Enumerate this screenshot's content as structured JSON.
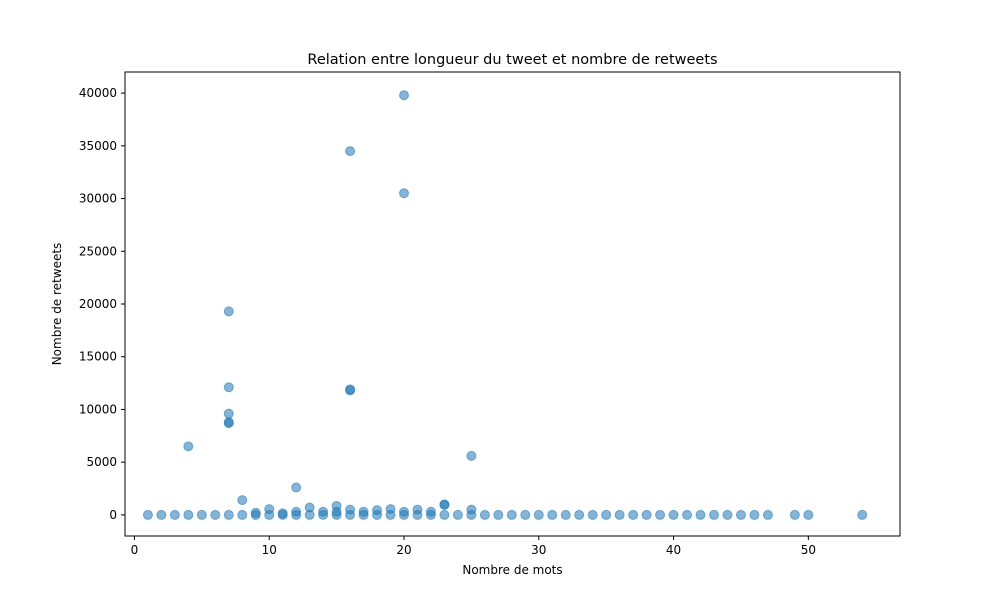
{
  "chart_data": {
    "type": "scatter",
    "title": "Relation entre longueur du tweet et nombre de retweets",
    "xlabel": "Nombre de mots",
    "ylabel": "Nombre de retweets",
    "xlim": [
      -0.7,
      56.8
    ],
    "ylim": [
      -2000,
      42000
    ],
    "x_ticks": [
      0,
      10,
      20,
      30,
      40,
      50
    ],
    "y_ticks": [
      0,
      5000,
      10000,
      15000,
      20000,
      25000,
      30000,
      35000,
      40000
    ],
    "grid": false,
    "legend": "none",
    "marker_color": "#1f77b4",
    "marker_alpha": 0.55,
    "points": [
      [
        1,
        0
      ],
      [
        2,
        0
      ],
      [
        3,
        0
      ],
      [
        4,
        0
      ],
      [
        5,
        0
      ],
      [
        6,
        0
      ],
      [
        7,
        0
      ],
      [
        8,
        0
      ],
      [
        9,
        0
      ],
      [
        10,
        0
      ],
      [
        11,
        0
      ],
      [
        12,
        0
      ],
      [
        13,
        0
      ],
      [
        14,
        0
      ],
      [
        15,
        0
      ],
      [
        16,
        0
      ],
      [
        17,
        0
      ],
      [
        18,
        0
      ],
      [
        19,
        0
      ],
      [
        20,
        0
      ],
      [
        21,
        0
      ],
      [
        22,
        0
      ],
      [
        23,
        0
      ],
      [
        24,
        0
      ],
      [
        25,
        0
      ],
      [
        26,
        0
      ],
      [
        27,
        0
      ],
      [
        28,
        0
      ],
      [
        29,
        0
      ],
      [
        30,
        0
      ],
      [
        31,
        0
      ],
      [
        32,
        0
      ],
      [
        33,
        0
      ],
      [
        34,
        0
      ],
      [
        35,
        0
      ],
      [
        36,
        0
      ],
      [
        37,
        0
      ],
      [
        38,
        0
      ],
      [
        39,
        0
      ],
      [
        40,
        0
      ],
      [
        41,
        0
      ],
      [
        42,
        0
      ],
      [
        43,
        0
      ],
      [
        44,
        0
      ],
      [
        45,
        0
      ],
      [
        46,
        0
      ],
      [
        47,
        0
      ],
      [
        49,
        0
      ],
      [
        50,
        0
      ],
      [
        54,
        0
      ],
      [
        4,
        6500
      ],
      [
        7,
        19300
      ],
      [
        7,
        12100
      ],
      [
        7,
        9600
      ],
      [
        7,
        8700
      ],
      [
        7,
        8800
      ],
      [
        8,
        1400
      ],
      [
        9,
        200
      ],
      [
        10,
        550
      ],
      [
        11,
        150
      ],
      [
        12,
        2600
      ],
      [
        12,
        300
      ],
      [
        13,
        700
      ],
      [
        14,
        300
      ],
      [
        15,
        850
      ],
      [
        15,
        300
      ],
      [
        16,
        34500
      ],
      [
        16,
        11800
      ],
      [
        16,
        11900
      ],
      [
        16,
        500
      ],
      [
        17,
        300
      ],
      [
        18,
        450
      ],
      [
        19,
        550
      ],
      [
        20,
        39800
      ],
      [
        20,
        30500
      ],
      [
        20,
        300
      ],
      [
        21,
        500
      ],
      [
        22,
        300
      ],
      [
        23,
        1000
      ],
      [
        23,
        950
      ],
      [
        25,
        5600
      ],
      [
        25,
        500
      ]
    ]
  }
}
